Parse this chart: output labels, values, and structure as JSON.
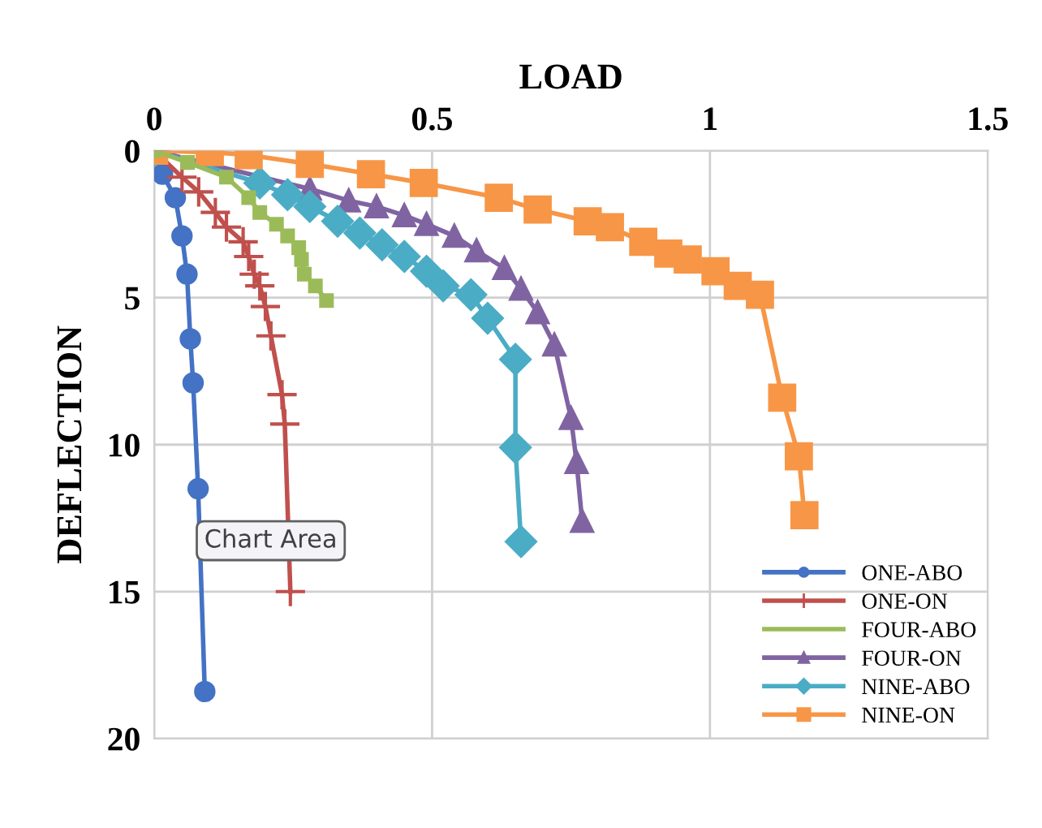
{
  "chart_data": {
    "type": "line",
    "xlabel": "LOAD",
    "ylabel": "DEFLECTION",
    "xlim": [
      0,
      1.5
    ],
    "xticks": [
      0,
      0.5,
      1,
      1.5
    ],
    "ylim": [
      20,
      0
    ],
    "yticks": [
      0,
      5,
      10,
      15,
      20
    ],
    "grid": true,
    "legend": "bottom right",
    "line_style": "solid",
    "annotations": [
      "Chart Area"
    ],
    "series": [
      {
        "name": "ONE-ABO",
        "color": "#4472c4",
        "marker": "circle",
        "x": [
          0,
          0.015,
          0.038,
          0.05,
          0.059,
          0.065,
          0.07,
          0.079,
          0.091
        ],
        "values": [
          0,
          0.8,
          1.6,
          2.9,
          4.2,
          6.4,
          7.9,
          11.5,
          18.4
        ]
      },
      {
        "name": "ONE-ON",
        "color": "#c0504d",
        "marker": "cross",
        "x": [
          0,
          0.05,
          0.08,
          0.11,
          0.13,
          0.16,
          0.17,
          0.18,
          0.19,
          0.2,
          0.21,
          0.23,
          0.235,
          0.245
        ],
        "values": [
          0,
          0.9,
          1.4,
          2.1,
          2.6,
          3.1,
          3.6,
          4.2,
          4.6,
          5.3,
          6.3,
          8.3,
          9.3,
          15.0
        ]
      },
      {
        "name": "FOUR-ABO",
        "color": "#9bbb59",
        "marker": "square",
        "x": [
          0,
          0.06,
          0.13,
          0.17,
          0.19,
          0.22,
          0.24,
          0.26,
          0.265,
          0.27,
          0.29,
          0.31
        ],
        "values": [
          0,
          0.4,
          0.9,
          1.6,
          2.1,
          2.5,
          2.9,
          3.3,
          3.7,
          4.2,
          4.6,
          5.1
        ]
      },
      {
        "name": "FOUR-ON",
        "color": "#8064a2",
        "marker": "triangle",
        "x": [
          0,
          0.28,
          0.35,
          0.4,
          0.45,
          0.49,
          0.54,
          0.58,
          0.63,
          0.66,
          0.69,
          0.72,
          0.75,
          0.76,
          0.77
        ],
        "values": [
          0,
          1.3,
          1.7,
          1.9,
          2.2,
          2.5,
          2.9,
          3.4,
          4.0,
          4.7,
          5.5,
          6.6,
          9.1,
          10.6,
          12.6
        ]
      },
      {
        "name": "NINE-ABO",
        "color": "#4bacc6",
        "marker": "diamond",
        "x": [
          0,
          0.19,
          0.24,
          0.28,
          0.33,
          0.37,
          0.41,
          0.45,
          0.49,
          0.52,
          0.57,
          0.6,
          0.65,
          0.65,
          0.66
        ],
        "values": [
          0,
          1.1,
          1.5,
          1.9,
          2.4,
          2.8,
          3.2,
          3.6,
          4.1,
          4.6,
          4.9,
          5.7,
          7.1,
          10.1,
          13.3
        ]
      },
      {
        "name": "NINE-ON",
        "color": "#f79646",
        "marker": "square",
        "x": [
          0,
          0.1,
          0.17,
          0.28,
          0.39,
          0.485,
          0.62,
          0.69,
          0.78,
          0.82,
          0.88,
          0.925,
          0.96,
          1.01,
          1.05,
          1.09,
          1.13,
          1.16,
          1.17
        ],
        "values": [
          0,
          0.05,
          0.15,
          0.45,
          0.8,
          1.1,
          1.6,
          2.0,
          2.4,
          2.6,
          3.1,
          3.5,
          3.7,
          4.1,
          4.6,
          4.9,
          8.4,
          10.4,
          12.4
        ]
      }
    ]
  }
}
